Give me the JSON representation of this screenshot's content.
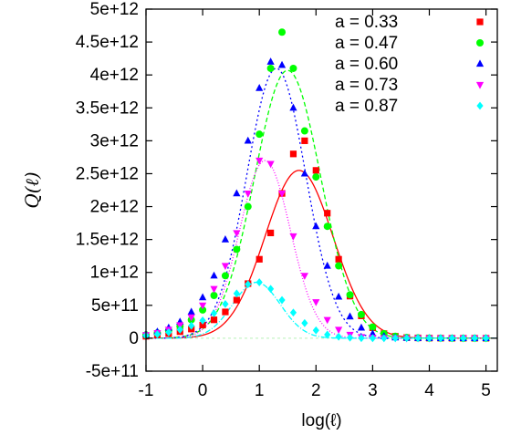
{
  "chart_data": {
    "type": "scatter",
    "title": "",
    "xlabel": "log(ℓ)",
    "ylabel": "Q(ℓ)",
    "xlim": [
      -1,
      5.2
    ],
    "ylim": [
      -500000000000.0,
      5000000000000.0
    ],
    "xticks": [
      -1,
      0,
      1,
      2,
      3,
      4,
      5
    ],
    "xtick_labels": [
      "-1",
      "0",
      "1",
      "2",
      "3",
      "4",
      "5"
    ],
    "yticks": [
      -500000000000.0,
      0,
      500000000000.0,
      1000000000000.0,
      1500000000000.0,
      2000000000000.0,
      2500000000000.0,
      3000000000000.0,
      3500000000000.0,
      4000000000000.0,
      4500000000000.0,
      5000000000000.0
    ],
    "ytick_labels": [
      "-5e+11",
      "0",
      "5e+11",
      "1e+12",
      "1.5e+12",
      "2e+12",
      "2.5e+12",
      "3e+12",
      "3.5e+12",
      "4e+12",
      "4.5e+12",
      "5e+12"
    ],
    "grid": false,
    "zero_line": true,
    "legend_position": "top-right",
    "series": [
      {
        "name": "a = 0.33",
        "color": "#ff0000",
        "marker": "square",
        "dash": "solid",
        "x": [
          -1,
          -0.8,
          -0.6,
          -0.4,
          -0.2,
          0,
          0.2,
          0.4,
          0.6,
          0.8,
          1,
          1.2,
          1.4,
          1.6,
          1.8,
          2,
          2.2,
          2.4,
          2.6,
          2.8,
          3,
          3.2,
          3.4,
          3.6,
          3.8,
          4,
          4.2,
          4.4,
          4.6,
          4.8,
          5
        ],
        "y": [
          30000000000.0,
          50000000000.0,
          70000000000.0,
          100000000000.0,
          140000000000.0,
          200000000000.0,
          280000000000.0,
          400000000000.0,
          580000000000.0,
          830000000000.0,
          1200000000000.0,
          1600000000000.0,
          2200000000000.0,
          2800000000000.0,
          3000000000000.0,
          2550000000000.0,
          1900000000000.0,
          1200000000000.0,
          640000000000.0,
          340000000000.0,
          160000000000.0,
          70000000000.0,
          30000000000.0,
          10000000000.0,
          5000000000.0,
          2000000000.0,
          1000000000.0,
          0,
          0,
          0,
          0
        ],
        "curve": {
          "peak": 2550000000000.0,
          "center": 1.7,
          "width": 0.6
        }
      },
      {
        "name": "a = 0.47",
        "color": "#00ff00",
        "marker": "circle",
        "dash": "5,3",
        "x": [
          -1,
          -0.8,
          -0.6,
          -0.4,
          -0.2,
          0,
          0.2,
          0.4,
          0.6,
          0.8,
          1,
          1.2,
          1.4,
          1.6,
          1.8,
          2,
          2.2,
          2.4,
          2.6,
          2.8,
          3,
          3.2,
          3.4,
          3.6,
          3.8,
          4,
          4.2,
          4.4,
          4.6,
          4.8,
          5
        ],
        "y": [
          50000000000.0,
          80000000000.0,
          120000000000.0,
          180000000000.0,
          280000000000.0,
          430000000000.0,
          650000000000.0,
          950000000000.0,
          1350000000000.0,
          2000000000000.0,
          3100000000000.0,
          4100000000000.0,
          4650000000000.0,
          4100000000000.0,
          3150000000000.0,
          2450000000000.0,
          1700000000000.0,
          1100000000000.0,
          660000000000.0,
          360000000000.0,
          170000000000.0,
          70000000000.0,
          30000000000.0,
          10000000000.0,
          5000000000.0,
          2000000000.0,
          1000000000.0,
          0,
          0,
          0,
          0
        ],
        "curve": {
          "peak": 4070000000000.0,
          "center": 1.5,
          "width": 0.58
        }
      },
      {
        "name": "a = 0.60",
        "color": "#0000ff",
        "marker": "triangle",
        "dash": "2,3",
        "x": [
          -1,
          -0.8,
          -0.6,
          -0.4,
          -0.2,
          0,
          0.2,
          0.4,
          0.6,
          0.8,
          1,
          1.2,
          1.4,
          1.6,
          1.8,
          2,
          2.2,
          2.4,
          2.6,
          2.8,
          3,
          3.2,
          3.4,
          3.6,
          3.8,
          4,
          4.2,
          4.4,
          4.6,
          4.8,
          5
        ],
        "y": [
          60000000000.0,
          100000000000.0,
          160000000000.0,
          250000000000.0,
          400000000000.0,
          620000000000.0,
          950000000000.0,
          1500000000000.0,
          2200000000000.0,
          3000000000000.0,
          3800000000000.0,
          4200000000000.0,
          4150000000000.0,
          3500000000000.0,
          2500000000000.0,
          1700000000000.0,
          1100000000000.0,
          630000000000.0,
          330000000000.0,
          160000000000.0,
          70000000000.0,
          30000000000.0,
          10000000000.0,
          5000000000.0,
          2000000000.0,
          1000000000.0,
          0,
          0,
          0,
          0,
          0
        ],
        "curve": {
          "peak": 4100000000000.0,
          "center": 1.3,
          "width": 0.52
        }
      },
      {
        "name": "a = 0.73",
        "color": "#ff00ff",
        "marker": "triangle-down",
        "dash": "1,2",
        "x": [
          -1,
          -0.8,
          -0.6,
          -0.4,
          -0.2,
          0,
          0.2,
          0.4,
          0.6,
          0.8,
          1,
          1.2,
          1.4,
          1.6,
          1.8,
          2,
          2.2,
          2.4,
          2.6,
          2.8,
          3,
          3.2,
          3.4,
          3.6,
          3.8,
          4,
          4.2,
          4.4,
          4.6,
          4.8,
          5
        ],
        "y": [
          50000000000.0,
          80000000000.0,
          130000000000.0,
          200000000000.0,
          320000000000.0,
          500000000000.0,
          750000000000.0,
          1100000000000.0,
          1600000000000.0,
          2200000000000.0,
          2700000000000.0,
          2650000000000.0,
          2200000000000.0,
          1550000000000.0,
          950000000000.0,
          550000000000.0,
          280000000000.0,
          130000000000.0,
          55000000000.0,
          20000000000.0,
          8000000000.0,
          3000000000.0,
          1000000000.0,
          0,
          0,
          0,
          0,
          0,
          0,
          0,
          0
        ],
        "curve": {
          "peak": 2700000000000.0,
          "center": 1.1,
          "width": 0.45
        }
      },
      {
        "name": "a = 0.87",
        "color": "#00ffff",
        "marker": "diamond",
        "dash": "6,2,1,2",
        "x": [
          -1,
          -0.8,
          -0.6,
          -0.4,
          -0.2,
          0,
          0.2,
          0.4,
          0.6,
          0.8,
          1,
          1.2,
          1.4,
          1.6,
          1.8,
          2,
          2.2,
          2.4,
          2.6,
          2.8,
          3,
          3.2,
          3.4,
          3.6,
          3.8,
          4,
          4.2,
          4.4,
          4.6,
          4.8,
          5
        ],
        "y": [
          40000000000.0,
          60000000000.0,
          90000000000.0,
          130000000000.0,
          190000000000.0,
          270000000000.0,
          380000000000.0,
          520000000000.0,
          680000000000.0,
          820000000000.0,
          850000000000.0,
          750000000000.0,
          580000000000.0,
          390000000000.0,
          230000000000.0,
          120000000000.0,
          55000000000.0,
          23000000000.0,
          9000000000.0,
          3000000000.0,
          1000000000.0,
          0,
          0,
          0,
          0,
          0,
          0,
          0,
          0,
          0,
          0
        ],
        "curve": {
          "peak": 850000000000.0,
          "center": 0.95,
          "width": 0.42
        }
      }
    ]
  }
}
